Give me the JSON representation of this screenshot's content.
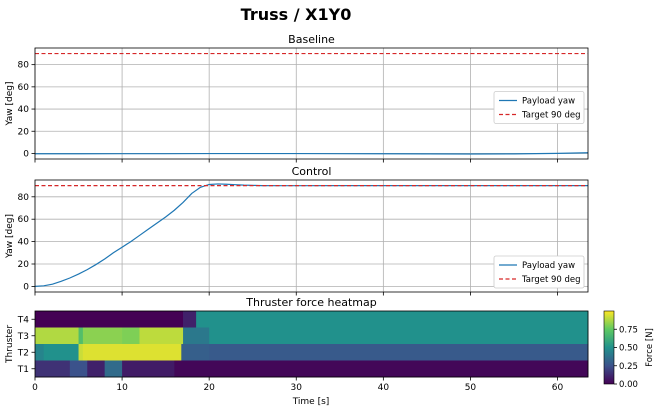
{
  "figure": {
    "title": "Truss / X1Y0",
    "xlabel": "Time [s]",
    "xticks": [
      0,
      10,
      20,
      30,
      40,
      50,
      60
    ]
  },
  "chart_data": [
    {
      "type": "line",
      "title": "Baseline",
      "ylabel": "Yaw [deg]",
      "xlim": [
        0,
        63.5
      ],
      "ylim": [
        -5,
        95
      ],
      "yticks": [
        0,
        20,
        40,
        60,
        80
      ],
      "grid": true,
      "legend_position": "center-right",
      "series": [
        {
          "name": "Payload yaw",
          "color": "#1f77b4",
          "style": "solid",
          "x": [
            0,
            5,
            10,
            15,
            20,
            25,
            30,
            35,
            40,
            45,
            50,
            55,
            60,
            63.5
          ],
          "y": [
            -0.3,
            -0.3,
            -0.2,
            -0.2,
            -0.1,
            -0.1,
            -0.1,
            -0.2,
            -0.3,
            -0.4,
            -0.5,
            -0.4,
            0.1,
            0.6
          ]
        },
        {
          "name": "Target 90 deg",
          "color": "#d62728",
          "style": "dashed",
          "x": [
            0,
            63.5
          ],
          "y": [
            90,
            90
          ]
        }
      ]
    },
    {
      "type": "line",
      "title": "Control",
      "ylabel": "Yaw [deg]",
      "xlim": [
        0,
        63.5
      ],
      "ylim": [
        -5,
        95
      ],
      "yticks": [
        0,
        20,
        40,
        60,
        80
      ],
      "grid": true,
      "legend_position": "lower-right",
      "series": [
        {
          "name": "Payload yaw",
          "color": "#1f77b4",
          "style": "solid",
          "x": [
            0,
            1,
            2,
            3,
            4,
            5,
            6,
            7,
            8,
            9,
            10,
            11,
            12,
            13,
            14,
            15,
            16,
            17,
            18,
            19,
            20,
            21,
            22,
            23,
            24,
            25,
            26,
            28,
            30,
            35,
            40,
            50,
            60,
            63.5
          ],
          "y": [
            0,
            0.5,
            2,
            4.5,
            7.5,
            11,
            15,
            19.5,
            24.5,
            30,
            35,
            40,
            45.5,
            51,
            56.5,
            62,
            68,
            75,
            83,
            88.5,
            91,
            91.5,
            91.2,
            90.8,
            90.4,
            90.2,
            90,
            89.9,
            89.9,
            90,
            90,
            90,
            90,
            90
          ]
        },
        {
          "name": "Target 90 deg",
          "color": "#d62728",
          "style": "dashed",
          "x": [
            0,
            63.5
          ],
          "y": [
            90,
            90
          ]
        }
      ]
    },
    {
      "type": "heatmap",
      "title": "Thruster force heatmap",
      "ylabel": "Thruster",
      "xlim": [
        0,
        63.5
      ],
      "rows": [
        "T4",
        "T3",
        "T2",
        "T1"
      ],
      "colorbar": {
        "label": "Force [N]",
        "range": [
          0,
          1
        ],
        "ticks": [
          "0.00",
          "0.25",
          "0.50",
          "0.75"
        ],
        "colormap": "viridis"
      },
      "segments": {
        "T4": [
          [
            0,
            17,
            0.0
          ],
          [
            17,
            18.5,
            0.1
          ],
          [
            18.5,
            63.5,
            0.5
          ]
        ],
        "T3": [
          [
            0,
            5,
            0.88
          ],
          [
            5,
            5.5,
            0.7
          ],
          [
            5.5,
            10,
            0.82
          ],
          [
            10,
            12,
            0.8
          ],
          [
            12,
            17,
            0.9
          ],
          [
            17,
            20,
            0.4
          ],
          [
            20,
            63.5,
            0.5
          ]
        ],
        "T2": [
          [
            0,
            1,
            0.45
          ],
          [
            1,
            5,
            0.5
          ],
          [
            5,
            5.5,
            0.92
          ],
          [
            5.5,
            16.8,
            0.95
          ],
          [
            16.8,
            20,
            0.3
          ],
          [
            20,
            63.5,
            0.28
          ]
        ],
        "T1": [
          [
            0,
            4,
            0.15
          ],
          [
            4,
            6,
            0.25
          ],
          [
            6,
            8,
            0.1
          ],
          [
            8,
            10,
            0.35
          ],
          [
            10,
            16,
            0.08
          ],
          [
            16,
            63.5,
            0.02
          ]
        ]
      }
    }
  ]
}
